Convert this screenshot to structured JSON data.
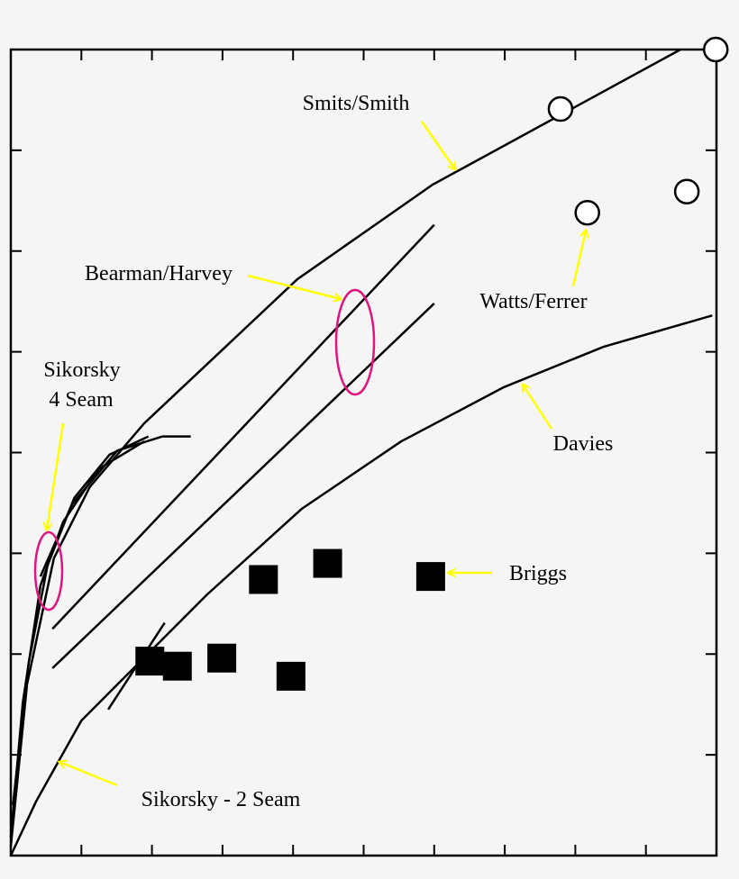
{
  "chart_data": {
    "type": "line",
    "title": "",
    "xlabel": "",
    "ylabel": "",
    "xlim": [
      0,
      10
    ],
    "ylim": [
      0,
      8
    ],
    "x_ticks": [
      0,
      1,
      2,
      3,
      4,
      5,
      6,
      7,
      8,
      9,
      10
    ],
    "y_ticks": [
      0,
      1,
      2,
      3,
      4,
      5,
      6,
      7,
      8
    ],
    "grid": false,
    "colors": {
      "line": "#000000",
      "arrow": "#ffff00",
      "highlight": "#e0157f",
      "background": "#f5f5f5"
    },
    "series": [
      {
        "name": "Smits/Smith",
        "kind": "line",
        "points": [
          [
            0,
            0.09
          ],
          [
            0.23,
            1.7
          ],
          [
            0.61,
            2.95
          ],
          [
            1.12,
            3.66
          ],
          [
            1.89,
            4.29
          ],
          [
            4.06,
            5.72
          ],
          [
            5.98,
            6.66
          ],
          [
            9.49,
            8.0
          ]
        ]
      },
      {
        "name": "Bearman/Harvey",
        "kind": "line",
        "points": [
          [
            0.59,
            2.25
          ],
          [
            6.0,
            6.26
          ]
        ]
      },
      {
        "name": "Bearman/Harvey",
        "kind": "line",
        "points": [
          [
            0.59,
            1.86
          ],
          [
            6.0,
            5.48
          ]
        ]
      },
      {
        "name": "Davies",
        "kind": "line",
        "points": [
          [
            0,
            0
          ],
          [
            0.36,
            0.54
          ],
          [
            1.0,
            1.34
          ],
          [
            2.78,
            2.59
          ],
          [
            4.12,
            3.44
          ],
          [
            5.53,
            4.11
          ],
          [
            6.99,
            4.65
          ],
          [
            8.4,
            5.05
          ],
          [
            9.94,
            5.36
          ]
        ]
      },
      {
        "name": "Sikorsky - 2 Seam",
        "kind": "line",
        "points": [
          [
            1.38,
            1.45
          ],
          [
            2.18,
            2.31
          ]
        ]
      },
      {
        "name": "Sikorsky 4 Seam",
        "kind": "line",
        "points": [
          [
            0,
            0.18
          ],
          [
            0.17,
            1.52
          ],
          [
            0.42,
            2.68
          ],
          [
            0.74,
            3.31
          ],
          [
            1.25,
            3.84
          ],
          [
            1.89,
            4.11
          ]
        ]
      },
      {
        "name": "Sikorsky 4 Seam",
        "kind": "line",
        "points": [
          [
            0.03,
            0.5
          ],
          [
            0.25,
            1.9
          ],
          [
            0.52,
            2.88
          ],
          [
            0.9,
            3.55
          ],
          [
            1.4,
            3.98
          ],
          [
            1.95,
            4.16
          ]
        ]
      },
      {
        "name": "Sikorsky 4 Seam",
        "kind": "line",
        "points": [
          [
            0.42,
            2.77
          ],
          [
            0.87,
            3.49
          ],
          [
            1.51,
            4.02
          ],
          [
            2.15,
            4.16
          ],
          [
            2.55,
            4.16
          ]
        ]
      },
      {
        "name": "Watts/Ferrer",
        "kind": "scatter",
        "marker": "open-circle",
        "points": [
          [
            9.99,
            8.0
          ],
          [
            7.79,
            7.41
          ],
          [
            8.17,
            6.38
          ],
          [
            9.58,
            6.59
          ]
        ]
      },
      {
        "name": "Briggs",
        "kind": "scatter",
        "marker": "filled-square",
        "points": [
          [
            1.97,
            1.93
          ],
          [
            2.36,
            1.88
          ],
          [
            2.99,
            1.96
          ],
          [
            3.58,
            2.74
          ],
          [
            4.49,
            2.9
          ],
          [
            3.97,
            1.78
          ],
          [
            5.95,
            2.77
          ]
        ]
      }
    ],
    "annotations": {
      "smits": "Smits/Smith",
      "bearman": "Bearman/Harvey",
      "watts": "Watts/Ferrer",
      "sikorsky4_line1": "Sikorsky",
      "sikorsky4_line2": "4 Seam",
      "davies": "Davies",
      "briggs": "Briggs",
      "sikorsky2": "Sikorsky - 2 Seam"
    }
  }
}
